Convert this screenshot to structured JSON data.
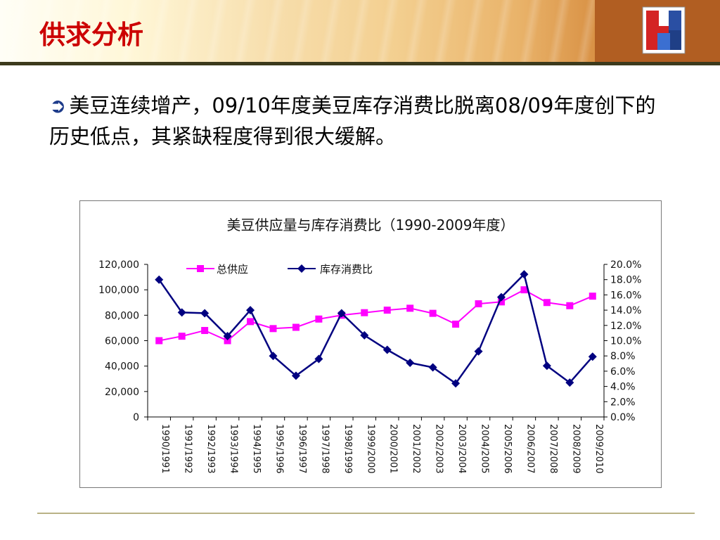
{
  "slide": {
    "title": "供求分析",
    "bullet_text": "美豆连续增产，09/10年度美豆库存消费比脱离08/09年度创下的历史低点，其紧缺程度得到很大缓解。",
    "logo_text": "HH"
  },
  "colors": {
    "title": "#cc0000",
    "supply_series": "#ff00ff",
    "ratio_series": "#000080",
    "bullet_icon": "#1d3b8a"
  },
  "icons": {
    "bullet": "arrow-right-circle-icon",
    "logo": "company-logo-icon"
  },
  "chart_data": {
    "type": "line",
    "title": "美豆供应量与库存消费比（1990-2009年度）",
    "categories": [
      "1990/1991",
      "1991/1992",
      "1992/1993",
      "1993/1994",
      "1994/1995",
      "1995/1996",
      "1996/1997",
      "1997/1998",
      "1998/1999",
      "1999/2000",
      "2000/2001",
      "2001/2002",
      "2002/2003",
      "2003/2004",
      "2004/2005",
      "2005/2006",
      "2006/2007",
      "2007/2008",
      "2008/2009",
      "2009/2010"
    ],
    "y_left": {
      "ticks": [
        "0",
        "20,000",
        "40,000",
        "60,000",
        "80,000",
        "100,000",
        "120,000"
      ],
      "min": 0,
      "max": 120000
    },
    "y_right": {
      "ticks": [
        "0.0%",
        "2.0%",
        "4.0%",
        "6.0%",
        "8.0%",
        "10.0%",
        "12.0%",
        "14.0%",
        "16.0%",
        "18.0%",
        "20.0%"
      ],
      "min": 0,
      "max": 20
    },
    "series": [
      {
        "name": "总供应",
        "axis": "left",
        "marker": "square",
        "color": "#ff00ff",
        "values": [
          60000,
          63500,
          68000,
          60000,
          75000,
          69500,
          70500,
          77000,
          80000,
          82000,
          84000,
          85500,
          81500,
          73000,
          89000,
          90500,
          100000,
          90000,
          87500,
          95000
        ]
      },
      {
        "name": "库存消费比",
        "axis": "right",
        "marker": "diamond",
        "color": "#000080",
        "values": [
          18.0,
          13.7,
          13.6,
          10.6,
          14.0,
          8.0,
          5.4,
          7.6,
          13.6,
          10.7,
          8.8,
          7.1,
          6.5,
          4.4,
          8.6,
          15.7,
          18.7,
          6.7,
          4.5,
          7.9
        ]
      }
    ],
    "legend": "top-left",
    "grid": false
  }
}
